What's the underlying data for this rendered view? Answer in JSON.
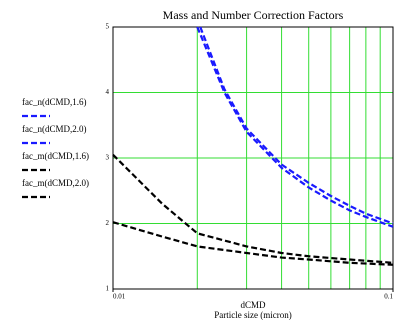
{
  "chart_data": {
    "type": "line",
    "title": "Mass and Number Correction Factors",
    "x_label": "dCMD",
    "x_label_2": "Particle size (micron)",
    "log_x": true,
    "grid": true,
    "grid_color": "#33dd33",
    "xlim": [
      0.01,
      0.1
    ],
    "xticks": [
      0.01,
      0.1
    ],
    "xgrid": [
      0.02,
      0.03,
      0.04,
      0.05,
      0.06,
      0.07,
      0.08,
      0.09
    ],
    "ylim": [
      1,
      5
    ],
    "yticks": [
      1,
      2,
      3,
      4,
      5
    ],
    "series": [
      {
        "name": "fac_n(dCMD,1.6)",
        "color": "#1a1aff",
        "x": [
          0.02,
          0.025,
          0.03,
          0.04,
          0.05,
          0.06,
          0.07,
          0.08,
          0.1
        ],
        "values": [
          5,
          4.0,
          3.4,
          2.85,
          2.55,
          2.35,
          2.2,
          2.1,
          1.95
        ]
      },
      {
        "name": "fac_n(dCMD,2.0)",
        "color": "#1a1aff",
        "x": [
          0.0205,
          0.025,
          0.03,
          0.04,
          0.05,
          0.06,
          0.07,
          0.08,
          0.1
        ],
        "values": [
          5,
          4.05,
          3.45,
          2.9,
          2.62,
          2.42,
          2.27,
          2.15,
          2.0
        ]
      },
      {
        "name": "fac_m(dCMD,1.6)",
        "color": "#000000",
        "x": [
          0.01,
          0.015,
          0.02,
          0.03,
          0.04,
          0.05,
          0.07,
          0.1
        ],
        "values": [
          3.05,
          2.3,
          1.85,
          1.65,
          1.55,
          1.5,
          1.45,
          1.4
        ]
      },
      {
        "name": "fac_m(dCMD,2.0)",
        "color": "#000000",
        "x": [
          0.01,
          0.015,
          0.02,
          0.03,
          0.04,
          0.05,
          0.07,
          0.1
        ],
        "values": [
          2.02,
          1.8,
          1.65,
          1.55,
          1.48,
          1.45,
          1.4,
          1.37
        ]
      }
    ]
  }
}
